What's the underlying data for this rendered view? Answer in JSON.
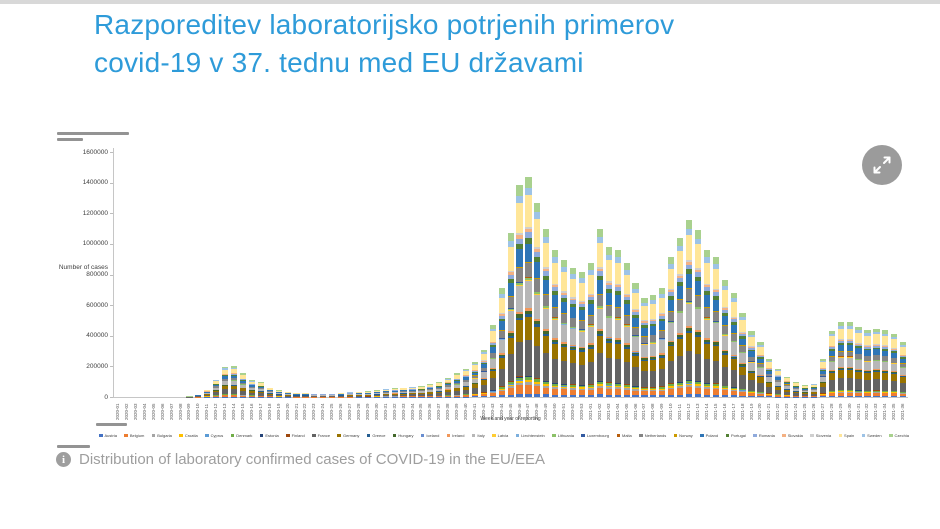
{
  "page": {
    "title_line1": "Razporeditev laboratorijsko potrjenih primerov",
    "title_line2": "covid-19 v 37. tednu med EU državami",
    "caption": "Distribution of laboratory confirmed cases of COVID-19 in the EU/EEA",
    "info_icon_glyph": "i",
    "accent_color": "#2e9bd9",
    "caption_color": "#9e9e9e"
  },
  "controls": {
    "expand_button_name": "expand-fullscreen"
  },
  "chart_data": {
    "type": "bar",
    "subtype": "stacked",
    "xlabel": "Week and year of reporting",
    "ylabel": "Number of cases",
    "ylim": [
      0,
      1600000
    ],
    "ytick_labels": [
      "0",
      "200000",
      "400000",
      "600000",
      "800000",
      "1000000",
      "1200000",
      "1400000",
      "1600000"
    ],
    "grid": false,
    "legend_position": "bottom",
    "categories": [
      "2020-01",
      "2020-02",
      "2020-03",
      "2020-04",
      "2020-05",
      "2020-06",
      "2020-07",
      "2020-08",
      "2020-09",
      "2020-10",
      "2020-11",
      "2020-12",
      "2020-13",
      "2020-14",
      "2020-15",
      "2020-16",
      "2020-17",
      "2020-18",
      "2020-19",
      "2020-20",
      "2020-21",
      "2020-22",
      "2020-23",
      "2020-24",
      "2020-25",
      "2020-26",
      "2020-27",
      "2020-28",
      "2020-29",
      "2020-30",
      "2020-31",
      "2020-32",
      "2020-33",
      "2020-34",
      "2020-35",
      "2020-36",
      "2020-37",
      "2020-38",
      "2020-39",
      "2020-40",
      "2020-41",
      "2020-42",
      "2020-43",
      "2020-44",
      "2020-45",
      "2020-46",
      "2020-47",
      "2020-48",
      "2020-49",
      "2020-50",
      "2020-51",
      "2020-52",
      "2020-53",
      "2021-01",
      "2021-02",
      "2021-03",
      "2021-04",
      "2021-05",
      "2021-06",
      "2021-07",
      "2021-08",
      "2021-09",
      "2021-10",
      "2021-11",
      "2021-12",
      "2021-13",
      "2021-14",
      "2021-15",
      "2021-16",
      "2021-17",
      "2021-18",
      "2021-19",
      "2021-20",
      "2021-21",
      "2021-22",
      "2021-23",
      "2021-24",
      "2021-25",
      "2021-26",
      "2021-27",
      "2021-28",
      "2021-29",
      "2021-30",
      "2021-31",
      "2021-32",
      "2021-33",
      "2021-34",
      "2021-35",
      "2021-36"
    ],
    "totals_estimated": [
      500,
      600,
      700,
      900,
      1000,
      1200,
      1500,
      2500,
      5000,
      17000,
      50000,
      115000,
      198000,
      202000,
      155000,
      111000,
      100000,
      63000,
      46000,
      35000,
      28000,
      28000,
      24000,
      24000,
      24000,
      28000,
      33000,
      37000,
      39000,
      46000,
      54000,
      59000,
      63000,
      67000,
      72000,
      85000,
      100000,
      126000,
      155000,
      187000,
      231000,
      310000,
      470000,
      710000,
      1070000,
      1385000,
      1440000,
      1270000,
      1100000,
      960000,
      895000,
      845000,
      815000,
      875000,
      1100000,
      980000,
      960000,
      875000,
      745000,
      650000,
      665000,
      710000,
      915000,
      1040000,
      1155000,
      1090000,
      960000,
      915000,
      765000,
      680000,
      550000,
      430000,
      360000,
      250000,
      185000,
      135000,
      100000,
      80000,
      90000,
      250000,
      435000,
      490000,
      490000,
      460000,
      440000,
      448000,
      437000,
      415000,
      360000
    ],
    "stack_order": "legend order, first country at bottom of bar",
    "countries": [
      {
        "name": "Austria",
        "color": "#4472C4",
        "approx_share_pct": 1.5
      },
      {
        "name": "Belgium",
        "color": "#ED7D31",
        "approx_share_pct": 4.0
      },
      {
        "name": "Bulgaria",
        "color": "#A5A5A5",
        "approx_share_pct": 1.0
      },
      {
        "name": "Croatia",
        "color": "#FFC000",
        "approx_share_pct": 1.0
      },
      {
        "name": "Cyprus",
        "color": "#5B9BD5",
        "approx_share_pct": 0.2
      },
      {
        "name": "Denmark",
        "color": "#70AD47",
        "approx_share_pct": 1.2
      },
      {
        "name": "Estonia",
        "color": "#264478",
        "approx_share_pct": 0.3
      },
      {
        "name": "Finland",
        "color": "#9E480E",
        "approx_share_pct": 0.4
      },
      {
        "name": "France",
        "color": "#636363",
        "approx_share_pct": 16.0
      },
      {
        "name": "Germany",
        "color": "#997300",
        "approx_share_pct": 10.0
      },
      {
        "name": "Greece",
        "color": "#255E91",
        "approx_share_pct": 1.2
      },
      {
        "name": "Hungary",
        "color": "#43682B",
        "approx_share_pct": 1.5
      },
      {
        "name": "Iceland",
        "color": "#698ED0",
        "approx_share_pct": 0.1
      },
      {
        "name": "Ireland",
        "color": "#F1975A",
        "approx_share_pct": 1.2
      },
      {
        "name": "Italy",
        "color": "#B7B7B7",
        "approx_share_pct": 12.0
      },
      {
        "name": "Latvia",
        "color": "#FFCD33",
        "approx_share_pct": 0.4
      },
      {
        "name": "Liechtenstein",
        "color": "#7CAFDD",
        "approx_share_pct": 0.1
      },
      {
        "name": "Lithuania",
        "color": "#8CC168",
        "approx_share_pct": 0.8
      },
      {
        "name": "Luxembourg",
        "color": "#335AA1",
        "approx_share_pct": 0.3
      },
      {
        "name": "Malta",
        "color": "#B85E0D",
        "approx_share_pct": 0.1
      },
      {
        "name": "Netherlands",
        "color": "#848484",
        "approx_share_pct": 6.5
      },
      {
        "name": "Norway",
        "color": "#CC9A00",
        "approx_share_pct": 0.6
      },
      {
        "name": "Poland",
        "color": "#2E75B6",
        "approx_share_pct": 8.0
      },
      {
        "name": "Portugal",
        "color": "#538135",
        "approx_share_pct": 2.5
      },
      {
        "name": "Romania",
        "color": "#8FAADC",
        "approx_share_pct": 2.5
      },
      {
        "name": "Slovakia",
        "color": "#F4B183",
        "approx_share_pct": 1.5
      },
      {
        "name": "Slovenia",
        "color": "#CFCFCF",
        "approx_share_pct": 1.0
      },
      {
        "name": "Spain",
        "color": "#FFE699",
        "approx_share_pct": 14.0
      },
      {
        "name": "Sweden",
        "color": "#9DC3E6",
        "approx_share_pct": 3.5
      },
      {
        "name": "Czechia",
        "color": "#A9D18E",
        "approx_share_pct": 4.8
      }
    ]
  }
}
